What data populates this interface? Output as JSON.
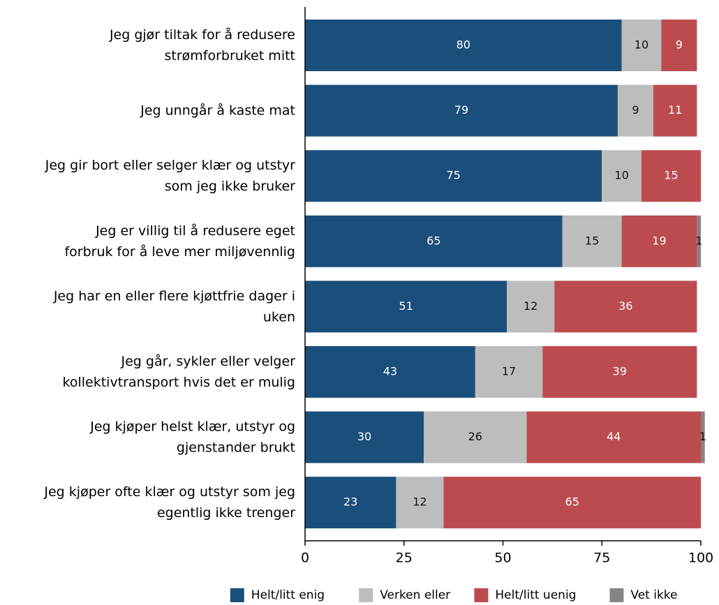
{
  "chart_data": {
    "type": "bar",
    "orientation": "horizontal",
    "stacked": true,
    "categories": [
      [
        "Jeg gjør tiltak for å redusere",
        "strømforbruket mitt"
      ],
      [
        "Jeg unngår å kaste mat"
      ],
      [
        "Jeg gir bort eller selger klær og utstyr",
        "som jeg ikke bruker"
      ],
      [
        "Jeg er villig til å redusere eget",
        "forbruk for å leve mer miljøvennlig"
      ],
      [
        "Jeg har en eller flere kjøttfrie dager i",
        "uken"
      ],
      [
        "Jeg går, sykler eller velger",
        "kollektivtransport hvis det er mulig"
      ],
      [
        "Jeg kjøper helst klær, utstyr og",
        "gjenstander brukt"
      ],
      [
        "Jeg kjøper ofte klær og utstyr som jeg",
        "egentlig ikke trenger"
      ]
    ],
    "series": [
      {
        "name": "Helt/litt enig",
        "color": "#1b4f7b",
        "values": [
          80,
          79,
          75,
          65,
          51,
          43,
          30,
          23
        ]
      },
      {
        "name": "Verken eller",
        "color": "#bdbdbd",
        "values": [
          10,
          9,
          10,
          15,
          12,
          17,
          26,
          12
        ]
      },
      {
        "name": "Helt/litt uenig",
        "color": "#bc4b4f",
        "values": [
          9,
          11,
          15,
          19,
          36,
          39,
          44,
          65
        ]
      },
      {
        "name": "Vet ikke",
        "color": "#858585",
        "values": [
          null,
          null,
          null,
          1,
          null,
          null,
          1,
          null
        ]
      }
    ],
    "xlim": [
      0,
      100
    ],
    "xticks": [
      0,
      25,
      50,
      75,
      100
    ],
    "legend": "bottom"
  }
}
